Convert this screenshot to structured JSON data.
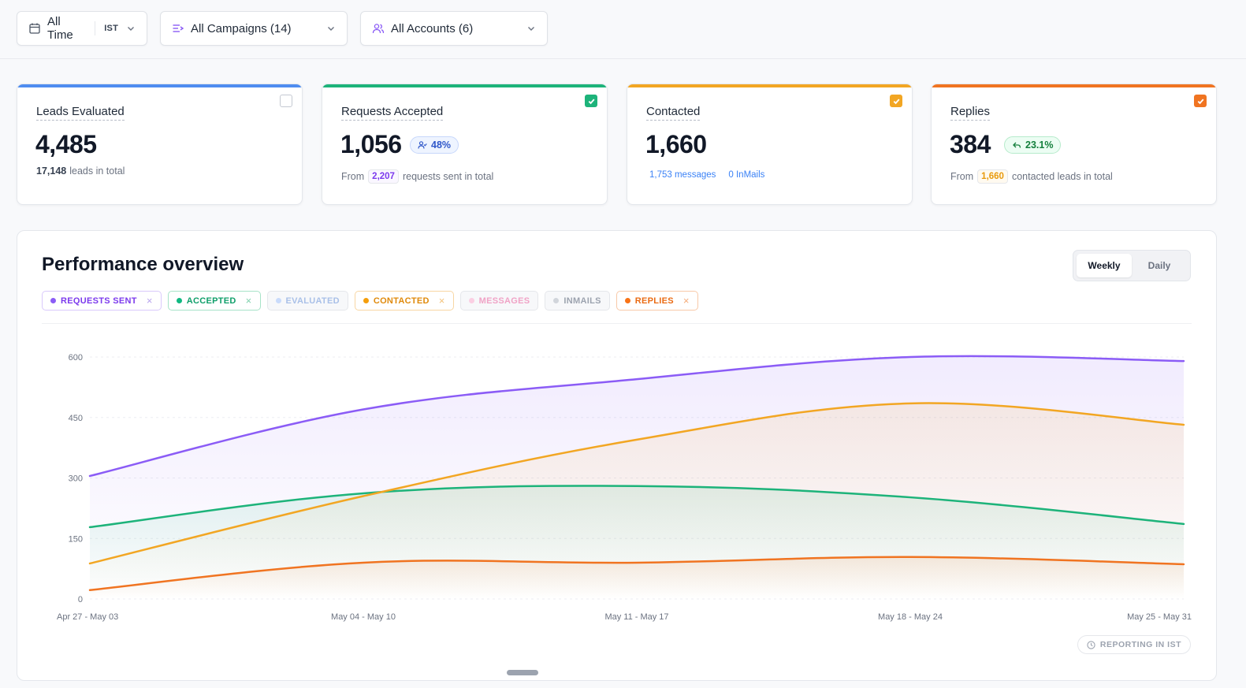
{
  "filters": {
    "time": {
      "label": "All Time",
      "timezone": "IST"
    },
    "campaigns": {
      "label": "All Campaigns (14)"
    },
    "accounts": {
      "label": "All Accounts (6)"
    }
  },
  "cards": [
    {
      "title": "Leads Evaluated",
      "value": "4,485",
      "sub_value": "17,148",
      "sub_text": "leads in total",
      "checked": false,
      "accent": "#4f8df0"
    },
    {
      "title": "Requests Accepted",
      "value": "1,056",
      "pill": "48%",
      "sub_prefix": "From",
      "sub_value": "2,207",
      "sub_text": "requests sent in total",
      "checked": true,
      "accent": "#1db37a"
    },
    {
      "title": "Contacted",
      "value": "1,660",
      "link1": "1,753 messages",
      "link2": "0 InMails",
      "checked": true,
      "accent": "#f2a623"
    },
    {
      "title": "Replies",
      "value": "384",
      "pill": "23.1%",
      "sub_prefix": "From",
      "sub_value": "1,660",
      "sub_text": "contacted leads in total",
      "checked": true,
      "accent": "#f07421"
    }
  ],
  "panel": {
    "title": "Performance overview",
    "toggle": {
      "weekly": "Weekly",
      "daily": "Daily",
      "active": "Weekly"
    },
    "legend": [
      {
        "label": "REQUESTS SENT",
        "color": "#8b5cf6",
        "active": true
      },
      {
        "label": "ACCEPTED",
        "color": "#10b981",
        "active": true
      },
      {
        "label": "EVALUATED",
        "color": "#93c5fd",
        "active": false
      },
      {
        "label": "CONTACTED",
        "color": "#f59e0b",
        "active": true
      },
      {
        "label": "MESSAGES",
        "color": "#f9a8d4",
        "active": false
      },
      {
        "label": "INMAILS",
        "color": "#9ca3af",
        "active": false
      },
      {
        "label": "REPLIES",
        "color": "#f97316",
        "active": true
      }
    ],
    "reporting": "REPORTING IN IST"
  },
  "chart_data": {
    "type": "area",
    "categories": [
      "Apr 27 - May 03",
      "May 04 - May 10",
      "May 11 - May 17",
      "May 18 - May 24",
      "May 25 - May 31"
    ],
    "ylim": [
      0,
      600
    ],
    "yticks": [
      0,
      150,
      300,
      450,
      600
    ],
    "grid": true,
    "series": [
      {
        "name": "REQUESTS SENT",
        "color": "#8b5cf6",
        "values": [
          305,
          470,
          545,
          600,
          590
        ]
      },
      {
        "name": "ACCEPTED",
        "color": "#1db37a",
        "values": [
          178,
          262,
          280,
          252,
          186
        ]
      },
      {
        "name": "CONTACTED",
        "color": "#f2a623",
        "values": [
          88,
          255,
          395,
          485,
          432
        ]
      },
      {
        "name": "REPLIES",
        "color": "#f07421",
        "values": [
          22,
          90,
          90,
          104,
          86
        ]
      }
    ]
  }
}
